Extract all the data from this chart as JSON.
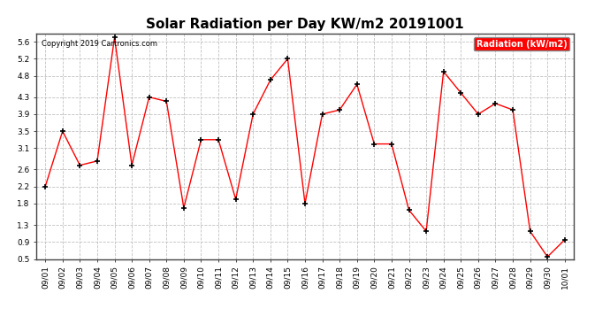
{
  "title": "Solar Radiation per Day KW/m2 20191001",
  "copyright_text": "Copyright 2019 Cartronics.com",
  "legend_label": "Radiation (kW/m2)",
  "dates": [
    "09/01",
    "09/02",
    "09/03",
    "09/04",
    "09/05",
    "09/06",
    "09/07",
    "09/08",
    "09/09",
    "09/10",
    "09/11",
    "09/12",
    "09/13",
    "09/14",
    "09/15",
    "09/16",
    "09/17",
    "09/18",
    "09/19",
    "09/20",
    "09/21",
    "09/22",
    "09/23",
    "09/24",
    "09/25",
    "09/26",
    "09/27",
    "09/28",
    "09/29",
    "09/30",
    "10/01"
  ],
  "values": [
    2.2,
    3.5,
    2.7,
    2.8,
    5.7,
    2.7,
    4.3,
    4.2,
    1.7,
    3.3,
    3.3,
    1.9,
    3.9,
    4.7,
    5.2,
    1.8,
    3.9,
    4.0,
    4.6,
    3.2,
    3.2,
    1.65,
    1.15,
    4.9,
    4.4,
    3.9,
    4.15,
    4.0,
    1.15,
    0.55,
    0.95
  ],
  "line_color": "#ff0000",
  "marker": "+",
  "marker_color": "#000000",
  "bg_color": "#ffffff",
  "plot_bg_color": "#ffffff",
  "grid_color": "#c0c0c0",
  "ylim": [
    0.5,
    5.8
  ],
  "yticks": [
    0.5,
    0.9,
    1.3,
    1.8,
    2.2,
    2.6,
    3.1,
    3.5,
    3.9,
    4.3,
    4.8,
    5.2,
    5.6
  ],
  "legend_bg": "#ff0000",
  "legend_text_color": "#ffffff",
  "title_fontsize": 11,
  "tick_fontsize": 6.5,
  "copyright_fontsize": 6,
  "border_color": "#444444"
}
